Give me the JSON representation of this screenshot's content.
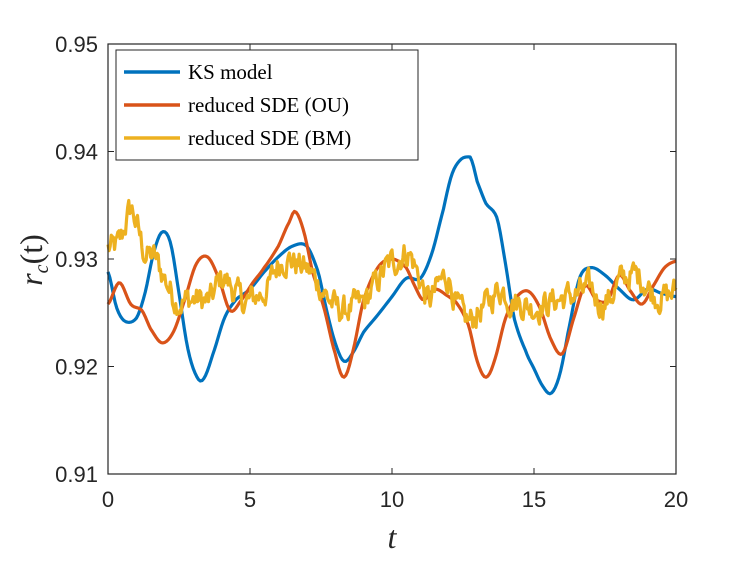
{
  "chart_data": {
    "type": "line",
    "title": "",
    "xlabel": "t",
    "ylabel_main": "r",
    "ylabel_sub": "c",
    "ylabel_arg": "(t)",
    "xlim": [
      0,
      20
    ],
    "ylim": [
      0.91,
      0.95
    ],
    "xticks": [
      0,
      5,
      10,
      15,
      20
    ],
    "xtick_labels": [
      "0",
      "5",
      "10",
      "15",
      "20"
    ],
    "yticks": [
      0.91,
      0.92,
      0.93,
      0.94,
      0.95
    ],
    "ytick_labels": [
      "0.91",
      "0.92",
      "0.93",
      "0.94",
      "0.95"
    ],
    "grid": false,
    "legend_position": "top-left",
    "series": [
      {
        "name": "KS model",
        "color": "#0072BD",
        "noise": 0,
        "x": [
          0,
          0.3,
          0.6,
          1.0,
          1.3,
          1.6,
          1.9,
          2.2,
          2.5,
          2.8,
          3.1,
          3.35,
          3.7,
          4.1,
          4.5,
          5.0,
          5.5,
          6.0,
          6.5,
          7.0,
          7.4,
          7.7,
          8.0,
          8.3,
          8.6,
          9.0,
          9.5,
          10.0,
          10.5,
          11.0,
          11.4,
          11.8,
          12.1,
          12.4,
          12.7,
          12.8,
          13.0,
          13.3,
          13.7,
          14.0,
          14.3,
          14.7,
          15.0,
          15.3,
          15.6,
          15.9,
          16.2,
          16.6,
          17.0,
          17.5,
          18.0,
          18.5,
          19.0,
          19.5,
          20.0
        ],
        "values": [
          0.9288,
          0.9255,
          0.9242,
          0.9245,
          0.9268,
          0.9305,
          0.9325,
          0.9315,
          0.9268,
          0.9218,
          0.9192,
          0.9188,
          0.9212,
          0.9245,
          0.9262,
          0.9272,
          0.9288,
          0.9302,
          0.9312,
          0.9312,
          0.9288,
          0.9252,
          0.9222,
          0.9205,
          0.9212,
          0.9232,
          0.9248,
          0.9265,
          0.9282,
          0.9282,
          0.9305,
          0.9345,
          0.9378,
          0.9392,
          0.9395,
          0.9392,
          0.9372,
          0.9352,
          0.9338,
          0.9295,
          0.9245,
          0.9215,
          0.9198,
          0.9182,
          0.9175,
          0.9192,
          0.9232,
          0.9282,
          0.9292,
          0.9285,
          0.9272,
          0.9262,
          0.9272,
          0.9268,
          0.9265
        ]
      },
      {
        "name": "reduced SDE (OU)",
        "color": "#D95319",
        "noise": 0,
        "x": [
          0,
          0.4,
          0.8,
          1.2,
          1.5,
          1.9,
          2.3,
          2.7,
          3.1,
          3.5,
          3.9,
          4.3,
          4.7,
          5.1,
          5.5,
          6.0,
          6.4,
          6.6,
          6.9,
          7.2,
          7.6,
          8.0,
          8.3,
          8.6,
          9.0,
          9.5,
          10.0,
          10.5,
          10.8,
          11.1,
          11.5,
          12.0,
          12.3,
          12.7,
          13.0,
          13.3,
          13.6,
          14.0,
          14.4,
          14.8,
          15.2,
          15.6,
          16.0,
          16.4,
          16.8,
          17.2,
          17.6,
          18.0,
          18.4,
          18.8,
          19.2,
          19.6,
          20.0
        ],
        "values": [
          0.9258,
          0.9278,
          0.9258,
          0.9252,
          0.9235,
          0.9222,
          0.9232,
          0.9262,
          0.9295,
          0.9302,
          0.9282,
          0.9252,
          0.9262,
          0.9278,
          0.9292,
          0.9312,
          0.9335,
          0.9344,
          0.9325,
          0.9288,
          0.9255,
          0.9212,
          0.919,
          0.9212,
          0.9262,
          0.9292,
          0.93,
          0.9292,
          0.9275,
          0.9262,
          0.9272,
          0.9265,
          0.9258,
          0.9238,
          0.9205,
          0.919,
          0.9205,
          0.9245,
          0.9265,
          0.927,
          0.9255,
          0.9225,
          0.9212,
          0.9245,
          0.9275,
          0.9262,
          0.9262,
          0.9285,
          0.927,
          0.9258,
          0.9275,
          0.9292,
          0.9298
        ]
      },
      {
        "name": "reduced SDE (BM)",
        "color": "#EDB120",
        "noise": 0.0011,
        "x": [
          0,
          0.4,
          0.8,
          1.0,
          1.3,
          1.6,
          2.0,
          2.4,
          2.8,
          3.2,
          3.6,
          4.0,
          4.4,
          4.8,
          5.2,
          5.6,
          6.0,
          6.3,
          6.7,
          7.0,
          7.4,
          7.8,
          8.2,
          8.6,
          9.0,
          9.4,
          9.8,
          10.2,
          10.6,
          11.0,
          11.3,
          11.7,
          12.0,
          12.3,
          12.7,
          13.0,
          13.4,
          13.8,
          14.2,
          14.6,
          15.0,
          15.4,
          15.8,
          16.2,
          16.6,
          17.0,
          17.3,
          17.6,
          18.0,
          18.4,
          18.8,
          19.2,
          19.6,
          20.0
        ],
        "values": [
          0.931,
          0.9315,
          0.9345,
          0.9332,
          0.9305,
          0.9302,
          0.9282,
          0.9262,
          0.9262,
          0.9262,
          0.9262,
          0.9282,
          0.9272,
          0.926,
          0.9265,
          0.9272,
          0.9295,
          0.93,
          0.9295,
          0.929,
          0.9278,
          0.9262,
          0.9252,
          0.9255,
          0.926,
          0.9275,
          0.9292,
          0.93,
          0.9305,
          0.928,
          0.9262,
          0.9278,
          0.9282,
          0.9255,
          0.9242,
          0.925,
          0.926,
          0.9272,
          0.9262,
          0.9258,
          0.9255,
          0.9258,
          0.9262,
          0.9265,
          0.9268,
          0.9272,
          0.926,
          0.9262,
          0.9278,
          0.9285,
          0.9282,
          0.9268,
          0.9265,
          0.927
        ]
      }
    ]
  }
}
